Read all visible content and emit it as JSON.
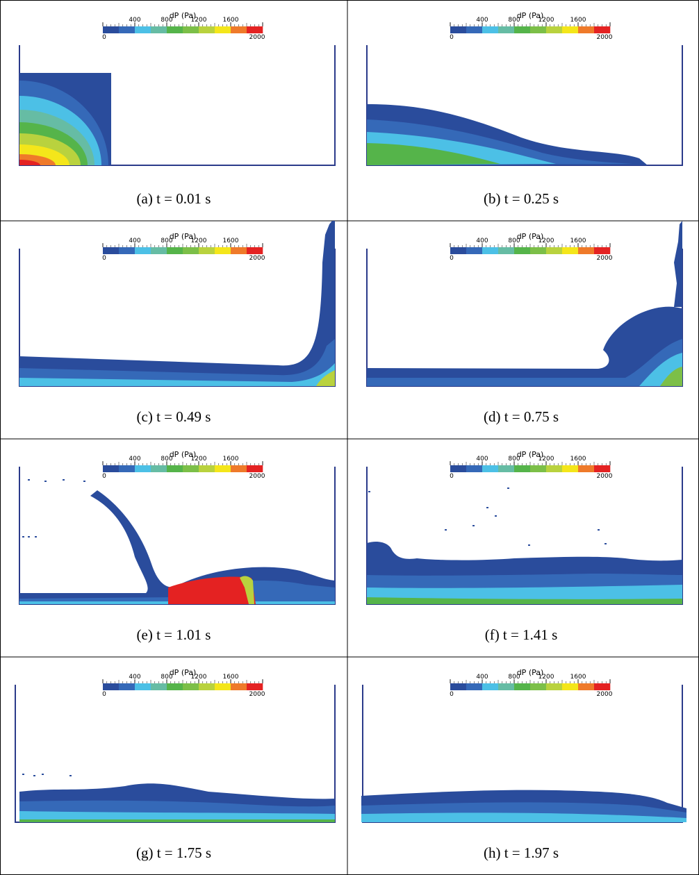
{
  "colorbar": {
    "title": "dP (Pa)",
    "ticks": [
      0,
      400,
      800,
      1200,
      1600,
      2000
    ],
    "colors": [
      "#2a4c9c",
      "#3569b8",
      "#4cc0e6",
      "#66bca4",
      "#55b44a",
      "#7cbf48",
      "#b9d23e",
      "#f4e61a",
      "#ef7a2a",
      "#e42222"
    ]
  },
  "panels": [
    {
      "caption": "(a) t = 0.01 s"
    },
    {
      "caption": "(b) t = 0.25 s"
    },
    {
      "caption": "(c) t = 0.49 s"
    },
    {
      "caption": "(d) t = 0.75 s"
    },
    {
      "caption": "(e) t = 1.01 s"
    },
    {
      "caption": "(f) t = 1.41 s"
    },
    {
      "caption": "(g) t = 1.75 s"
    },
    {
      "caption": "(h) t = 1.97 s"
    }
  ]
}
